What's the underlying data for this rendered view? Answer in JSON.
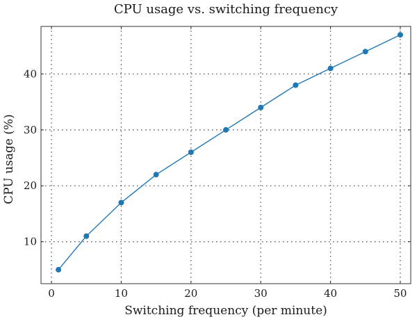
{
  "chart_data": {
    "type": "line",
    "title": "CPU usage vs. switching frequency",
    "xlabel": "Switching frequency (per minute)",
    "ylabel": "CPU usage (%)",
    "xlim": [
      -1.5,
      51.5
    ],
    "ylim": [
      2.5,
      48.5
    ],
    "xticks": [
      0,
      10,
      20,
      30,
      40,
      50
    ],
    "yticks": [
      10,
      20,
      30,
      40
    ],
    "xgrid": [
      0,
      10,
      20,
      30,
      40,
      50
    ],
    "ygrid": [
      10,
      20,
      30,
      40
    ],
    "grid": true,
    "legend": "none",
    "colors": {
      "series": "#1f77b4"
    },
    "series": [
      {
        "x": [
          1,
          5,
          10,
          15,
          20,
          25,
          30,
          35,
          40,
          45,
          50
        ],
        "y": [
          5,
          11,
          17,
          22,
          26,
          30,
          34,
          38,
          41,
          44,
          47
        ]
      }
    ]
  }
}
